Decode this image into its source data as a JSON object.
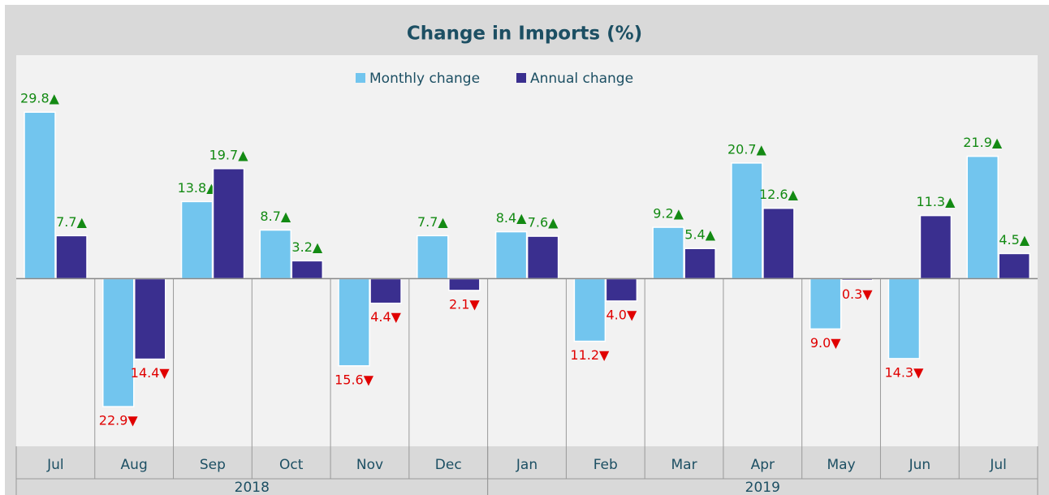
{
  "chart_data": {
    "type": "bar",
    "title": "Change in Imports (%)",
    "groups": [
      {
        "name": "2018",
        "categories": [
          "Jul",
          "Aug",
          "Sep",
          "Oct",
          "Nov",
          "Dec"
        ]
      },
      {
        "name": "2019",
        "categories": [
          "Jan",
          "Feb",
          "Mar",
          "Apr",
          "May",
          "Jun",
          "Jul"
        ]
      }
    ],
    "series": [
      {
        "name": "Monthly change",
        "color": "#72c5ee",
        "values": [
          29.8,
          -22.9,
          13.8,
          8.7,
          -15.6,
          7.7,
          8.4,
          -11.2,
          9.2,
          20.7,
          -9.0,
          -14.3,
          21.9
        ],
        "value_labels": [
          "29.8▲",
          "22.9▼",
          "13.8▲",
          "8.7▲",
          "15.6▼",
          "7.7▲",
          "8.4▲",
          "11.2▼",
          "9.2▲",
          "20.7▲",
          "9.0▼",
          "14.3▼",
          "21.9▲"
        ]
      },
      {
        "name": "Annual change",
        "color": "#3a2f8f",
        "values": [
          7.7,
          -14.4,
          19.7,
          3.2,
          -4.4,
          -2.1,
          7.6,
          -4.0,
          5.4,
          12.6,
          -0.3,
          11.3,
          4.5
        ],
        "value_labels": [
          "7.7▲",
          "14.4▼",
          "19.7▲",
          "3.2▲",
          "4.4▼",
          "2.1▼",
          "7.6▲",
          "4.0▼",
          "5.4▲",
          "12.6▲",
          "0.3▼",
          "11.3▲",
          "4.5▲"
        ]
      }
    ],
    "ylim": [
      -30,
      40
    ],
    "legend": "top"
  }
}
